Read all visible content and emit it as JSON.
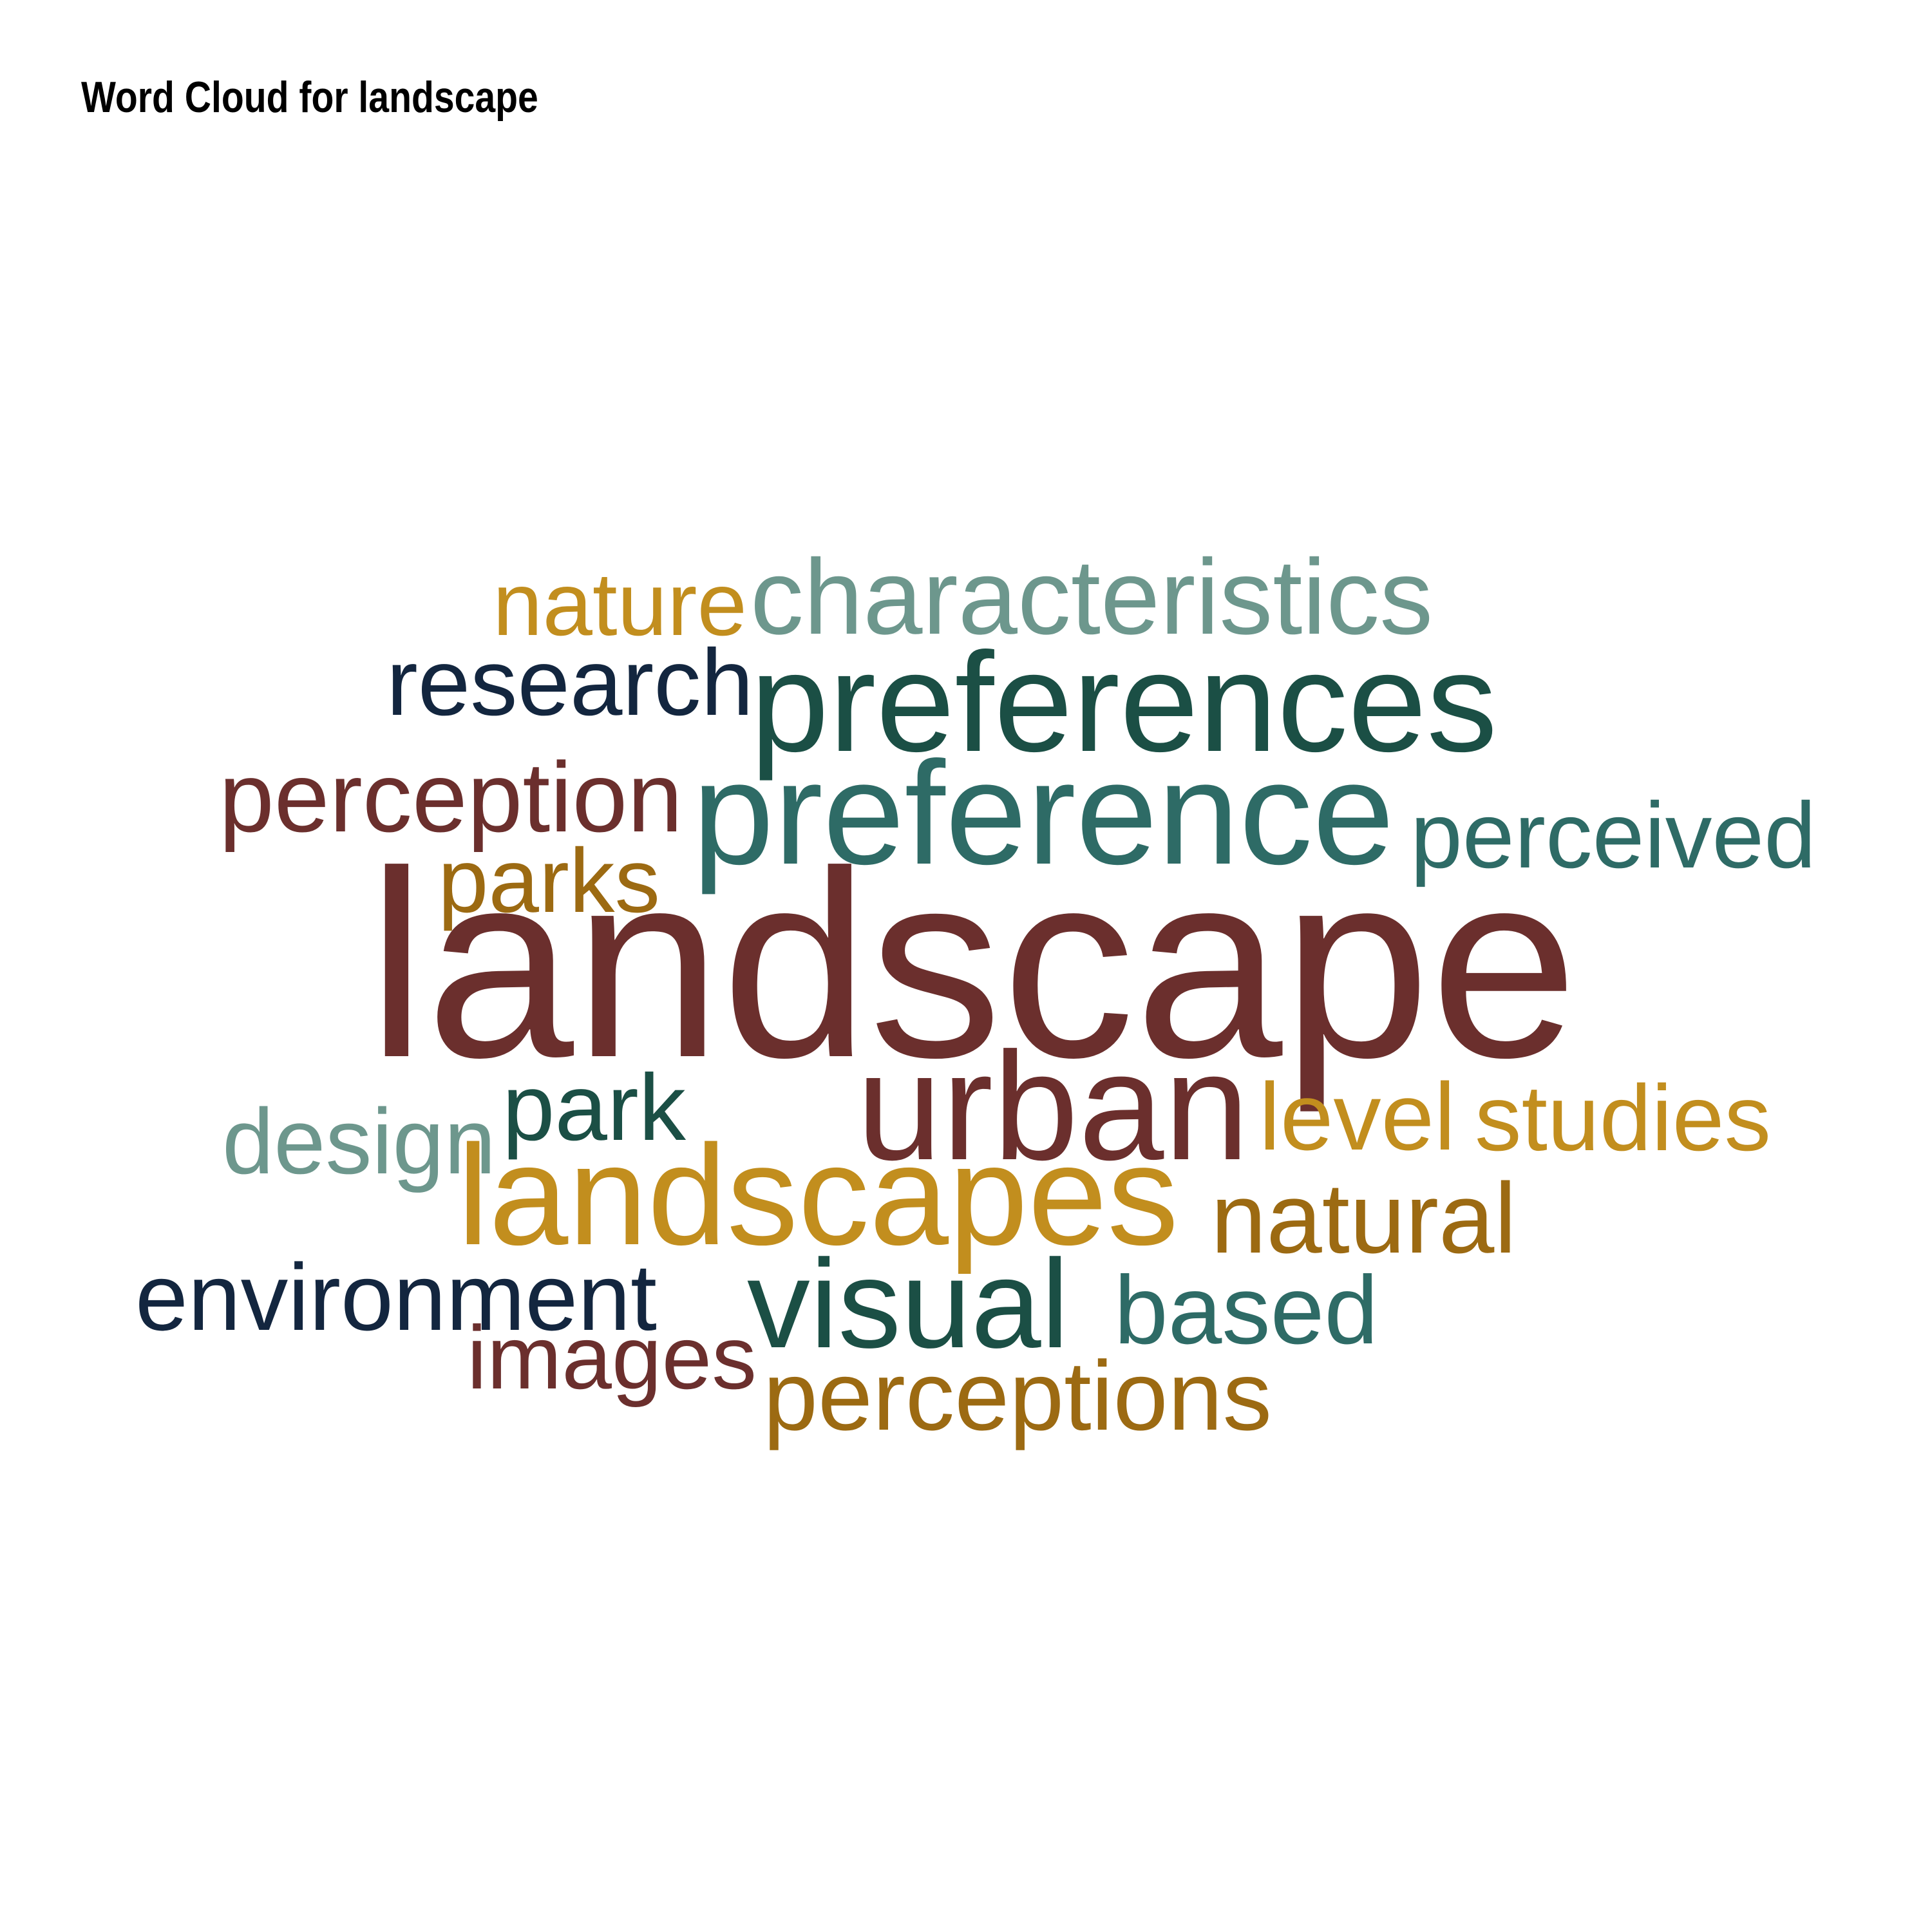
{
  "title": "Word Cloud for landscape",
  "words": [
    {
      "text": "landscape",
      "color": "#6b2f2d"
    },
    {
      "text": "preferences",
      "color": "#1b4f45"
    },
    {
      "text": "preference",
      "color": "#2e6b66"
    },
    {
      "text": "urban",
      "color": "#6b2f2d"
    },
    {
      "text": "landscapes",
      "color": "#c28e1e"
    },
    {
      "text": "characteristics",
      "color": "#6d978d"
    },
    {
      "text": "visual",
      "color": "#1b4f45"
    },
    {
      "text": "research",
      "color": "#13263f"
    },
    {
      "text": "perception",
      "color": "#6b2f2d"
    },
    {
      "text": "perceived",
      "color": "#2e6b66"
    },
    {
      "text": "nature",
      "color": "#c28e1e"
    },
    {
      "text": "parks",
      "color": "#9c6a12"
    },
    {
      "text": "park",
      "color": "#1b4f45"
    },
    {
      "text": "design",
      "color": "#6d978d"
    },
    {
      "text": "level",
      "color": "#c28e1e"
    },
    {
      "text": "studies",
      "color": "#c28e1e"
    },
    {
      "text": "natural",
      "color": "#9c6a12"
    },
    {
      "text": "environment",
      "color": "#13263f"
    },
    {
      "text": "based",
      "color": "#2e6b66"
    },
    {
      "text": "images",
      "color": "#6b2f2d"
    },
    {
      "text": "perceptions",
      "color": "#9c6a12"
    }
  ]
}
